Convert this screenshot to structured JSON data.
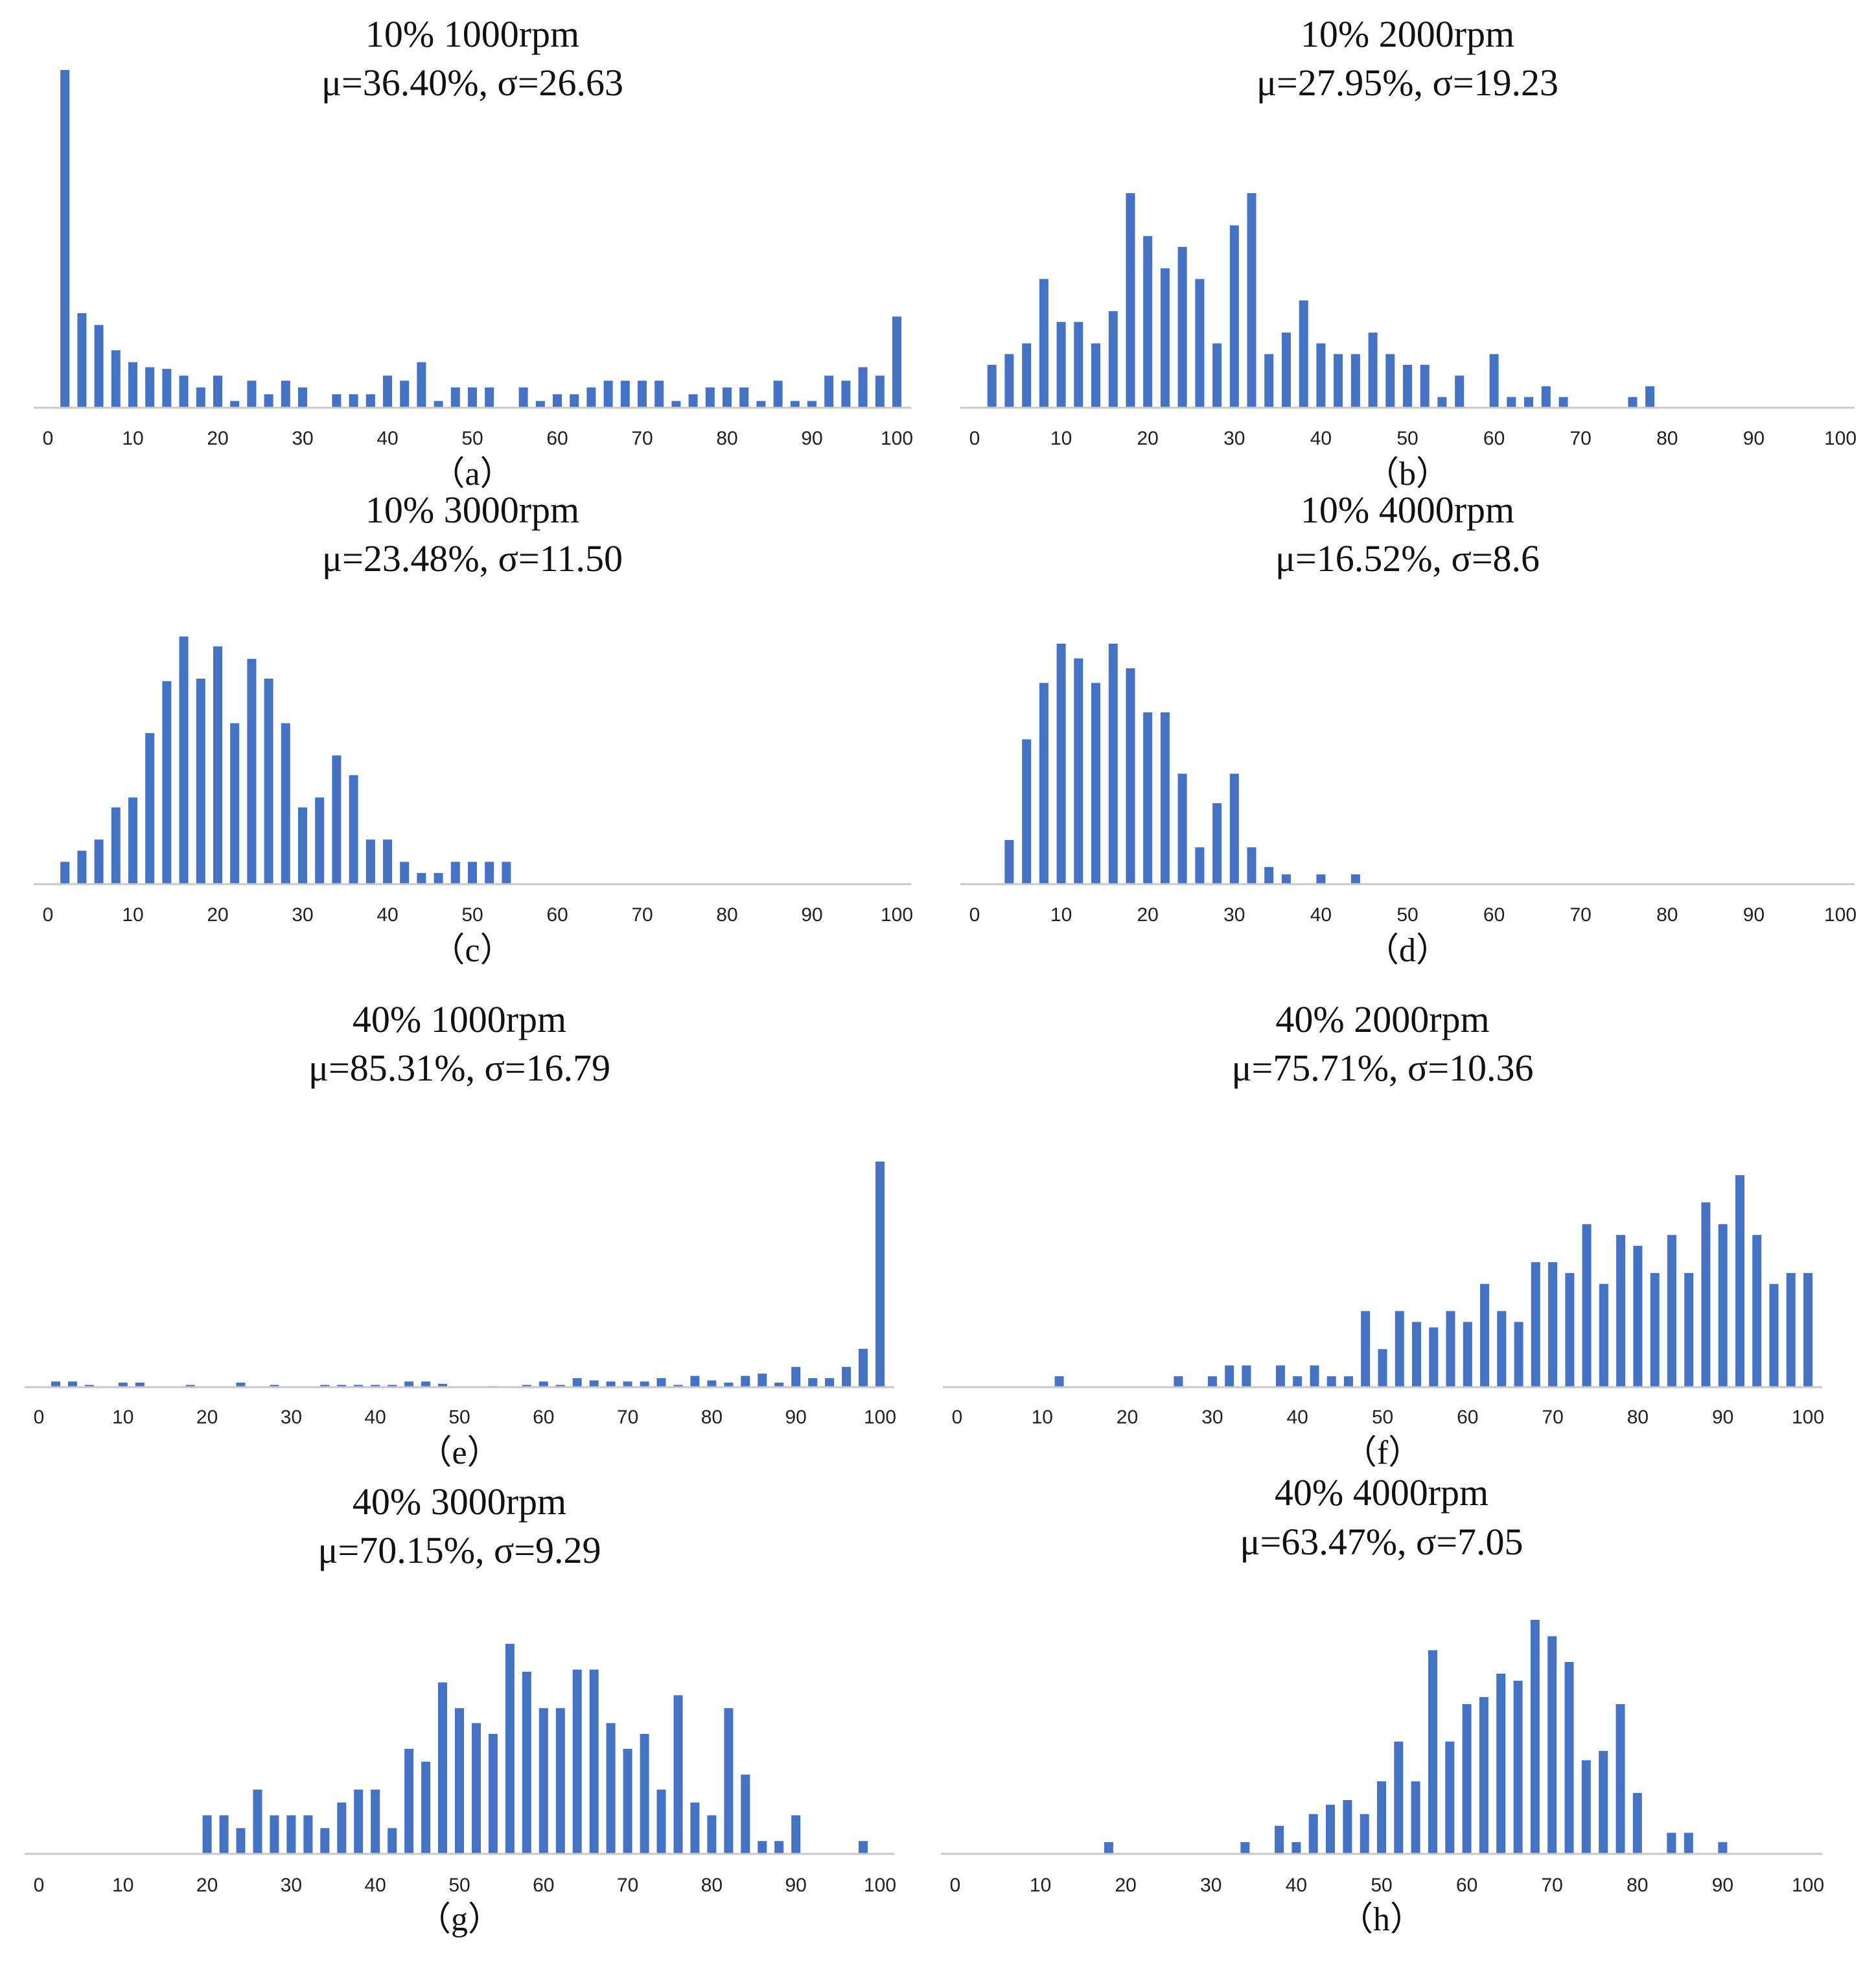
{
  "chart_data": [
    {
      "type": "bar",
      "label": "（a）",
      "title": "10% 1000rpm",
      "subtitle": "μ=36.40%, σ=26.63",
      "xlim": [
        0,
        100
      ],
      "xticks": [
        "0",
        "10",
        "20",
        "30",
        "40",
        "50",
        "60",
        "70",
        "80",
        "90",
        "100"
      ],
      "color": "#4472C4",
      "x": [
        2,
        4,
        6,
        8,
        10,
        12,
        14,
        16,
        18,
        20,
        22,
        24,
        26,
        28,
        30,
        32,
        34,
        36,
        38,
        40,
        42,
        44,
        46,
        48,
        50,
        52,
        54,
        56,
        58,
        60,
        62,
        64,
        66,
        68,
        70,
        72,
        74,
        76,
        78,
        80,
        82,
        84,
        86,
        88,
        90,
        92,
        94,
        96,
        98,
        100
      ],
      "values": [
        100,
        28,
        24.5,
        17,
        13.5,
        12,
        11.5,
        9.5,
        6,
        9.5,
        2,
        8,
        4,
        8,
        6,
        0,
        4,
        4,
        4,
        9.5,
        8,
        13.5,
        2,
        6,
        6,
        6,
        0,
        6,
        2,
        4,
        4,
        6,
        8,
        8,
        8,
        8,
        2,
        4,
        6,
        6,
        6,
        2,
        8,
        2,
        2,
        9.5,
        8,
        12,
        9.5,
        27
      ]
    },
    {
      "type": "bar",
      "label": "（b）",
      "title": "10% 2000rpm",
      "subtitle": "μ=27.95%, σ=19.23",
      "xlim": [
        0,
        100
      ],
      "xticks": [
        "0",
        "10",
        "20",
        "30",
        "40",
        "50",
        "60",
        "70",
        "80",
        "90",
        "100"
      ],
      "color": "#4472C4",
      "x": [
        2,
        4,
        6,
        8,
        10,
        12,
        14,
        16,
        18,
        20,
        22,
        24,
        26,
        28,
        30,
        32,
        34,
        36,
        38,
        40,
        42,
        44,
        46,
        48,
        50,
        52,
        54,
        56,
        58,
        60,
        62,
        64,
        66,
        68,
        70,
        72,
        74,
        76,
        78
      ],
      "values": [
        20,
        25,
        30,
        60,
        40,
        40,
        30,
        45,
        100,
        80,
        65,
        75,
        60,
        30,
        85,
        100,
        25,
        35,
        50,
        30,
        25,
        25,
        35,
        25,
        20,
        20,
        5,
        15,
        0,
        25,
        5,
        5,
        10,
        5,
        0,
        0,
        0,
        5,
        10
      ]
    },
    {
      "type": "bar",
      "label": "（c）",
      "title": "10% 3000rpm",
      "subtitle": "μ=23.48%, σ=11.50",
      "xlim": [
        0,
        100
      ],
      "xticks": [
        "0",
        "10",
        "20",
        "30",
        "40",
        "50",
        "60",
        "70",
        "80",
        "90",
        "100"
      ],
      "color": "#4472C4",
      "x": [
        2,
        4,
        6,
        8,
        10,
        12,
        14,
        16,
        18,
        20,
        22,
        24,
        26,
        28,
        30,
        32,
        34,
        36,
        38,
        40,
        42,
        44,
        46,
        48,
        50,
        52,
        54
      ],
      "values": [
        9,
        13.5,
        18,
        31,
        35,
        61,
        82,
        100,
        83,
        96,
        65,
        91,
        83,
        65,
        31,
        35,
        52,
        44,
        18,
        18,
        9,
        4.5,
        4.5,
        9,
        9,
        9,
        9
      ]
    },
    {
      "type": "bar",
      "label": "（d）",
      "title": "10% 4000rpm",
      "subtitle": "μ=16.52%, σ=8.6",
      "xlim": [
        0,
        100
      ],
      "xticks": [
        "0",
        "10",
        "20",
        "30",
        "40",
        "50",
        "60",
        "70",
        "80",
        "90",
        "100"
      ],
      "color": "#4472C4",
      "x": [
        4,
        6,
        8,
        10,
        12,
        14,
        16,
        18,
        20,
        22,
        24,
        26,
        28,
        30,
        32,
        34,
        36,
        38,
        40,
        42,
        44
      ],
      "values": [
        18,
        59,
        82,
        98,
        92,
        82,
        98,
        88,
        70,
        70,
        45,
        15,
        33,
        45,
        15,
        7,
        4,
        0,
        4,
        0,
        4
      ]
    },
    {
      "type": "bar",
      "label": "（e）",
      "title": "40% 1000rpm",
      "subtitle": "μ=85.31%, σ=16.79",
      "xlim": [
        0,
        100
      ],
      "xticks": [
        "0",
        "10",
        "20",
        "30",
        "40",
        "50",
        "60",
        "70",
        "80",
        "90",
        "100"
      ],
      "color": "#4472C4",
      "x": [
        2,
        4,
        6,
        8,
        10,
        12,
        14,
        16,
        18,
        20,
        22,
        24,
        26,
        28,
        30,
        32,
        34,
        36,
        38,
        40,
        42,
        44,
        46,
        48,
        50,
        52,
        54,
        56,
        58,
        60,
        62,
        64,
        66,
        68,
        70,
        72,
        74,
        76,
        78,
        80,
        82,
        84,
        86,
        88,
        90,
        92,
        94,
        96,
        98,
        100
      ],
      "values": [
        2.5,
        2.5,
        1,
        0,
        2,
        2,
        0,
        0,
        1,
        0,
        0,
        2,
        0,
        1,
        0,
        0,
        1,
        1,
        1,
        1,
        1,
        2.5,
        2.5,
        1.5,
        0,
        0,
        0.5,
        0,
        1,
        2.5,
        1,
        4,
        3,
        2.5,
        2.5,
        2.5,
        4,
        1,
        5,
        3,
        2,
        5,
        6,
        2,
        9,
        4,
        4,
        9,
        17,
        100
      ]
    },
    {
      "type": "bar",
      "label": "（f）",
      "title": "40% 2000rpm",
      "subtitle": "μ=75.71%, σ=10.36",
      "xlim": [
        0,
        100
      ],
      "xticks": [
        "0",
        "10",
        "20",
        "30",
        "40",
        "50",
        "60",
        "70",
        "80",
        "90",
        "100"
      ],
      "color": "#4472C4",
      "x": [
        12,
        26,
        30,
        32,
        34,
        38,
        40,
        42,
        44,
        46,
        48,
        50,
        52,
        54,
        56,
        58,
        60,
        62,
        64,
        66,
        68,
        70,
        72,
        74,
        76,
        78,
        80,
        82,
        84,
        86,
        88,
        90,
        92,
        94,
        96,
        98,
        100
      ],
      "values": [
        5,
        5,
        5,
        10,
        10,
        10,
        5,
        10,
        5,
        5,
        35,
        17.5,
        35,
        30,
        27.5,
        35,
        30,
        47.5,
        35,
        30,
        57.5,
        57.5,
        52.5,
        75,
        47.5,
        70,
        65,
        52.5,
        70,
        52.5,
        85,
        75,
        97.5,
        70,
        47.5,
        52.5,
        52.5
      ]
    },
    {
      "type": "bar",
      "label": "（g）",
      "title": "40% 3000rpm",
      "subtitle": "μ=70.15%, σ=9.29",
      "xlim": [
        0,
        100
      ],
      "xticks": [
        "0",
        "10",
        "20",
        "30",
        "40",
        "50",
        "60",
        "70",
        "80",
        "90",
        "100"
      ],
      "color": "#4472C4",
      "x": [
        20,
        22,
        24,
        26,
        28,
        30,
        32,
        34,
        36,
        38,
        40,
        42,
        44,
        46,
        48,
        50,
        52,
        54,
        56,
        58,
        60,
        62,
        64,
        66,
        68,
        70,
        72,
        74,
        76,
        78,
        80,
        82,
        84,
        86,
        88,
        90,
        92,
        94,
        96,
        98
      ],
      "values": [
        18,
        18,
        12,
        30,
        18,
        18,
        18,
        12,
        24,
        30,
        30,
        12,
        49,
        43,
        80,
        68,
        61,
        56,
        98,
        85,
        68,
        68,
        86,
        86,
        61,
        49,
        56,
        30,
        74,
        24,
        18,
        68,
        37,
        6,
        6,
        18,
        0,
        0,
        0,
        6
      ]
    },
    {
      "type": "bar",
      "label": "（h）",
      "title": "40% 4000rpm",
      "subtitle": "μ=63.47%, σ=7.05",
      "xlim": [
        0,
        100
      ],
      "xticks": [
        "0",
        "10",
        "20",
        "30",
        "40",
        "50",
        "60",
        "70",
        "80",
        "90",
        "100"
      ],
      "color": "#4472C4",
      "x": [
        18,
        34,
        38,
        40,
        42,
        44,
        46,
        48,
        50,
        52,
        54,
        56,
        58,
        60,
        62,
        64,
        66,
        68,
        70,
        72,
        74,
        76,
        78,
        80,
        82,
        84,
        86,
        88,
        90
      ],
      "values": [
        5,
        5,
        12,
        5,
        17,
        21,
        23,
        17,
        31,
        48,
        31,
        87,
        48,
        64,
        67,
        77,
        74,
        100,
        93,
        82,
        40,
        44,
        64,
        26,
        0,
        9,
        9,
        0,
        5
      ]
    }
  ]
}
